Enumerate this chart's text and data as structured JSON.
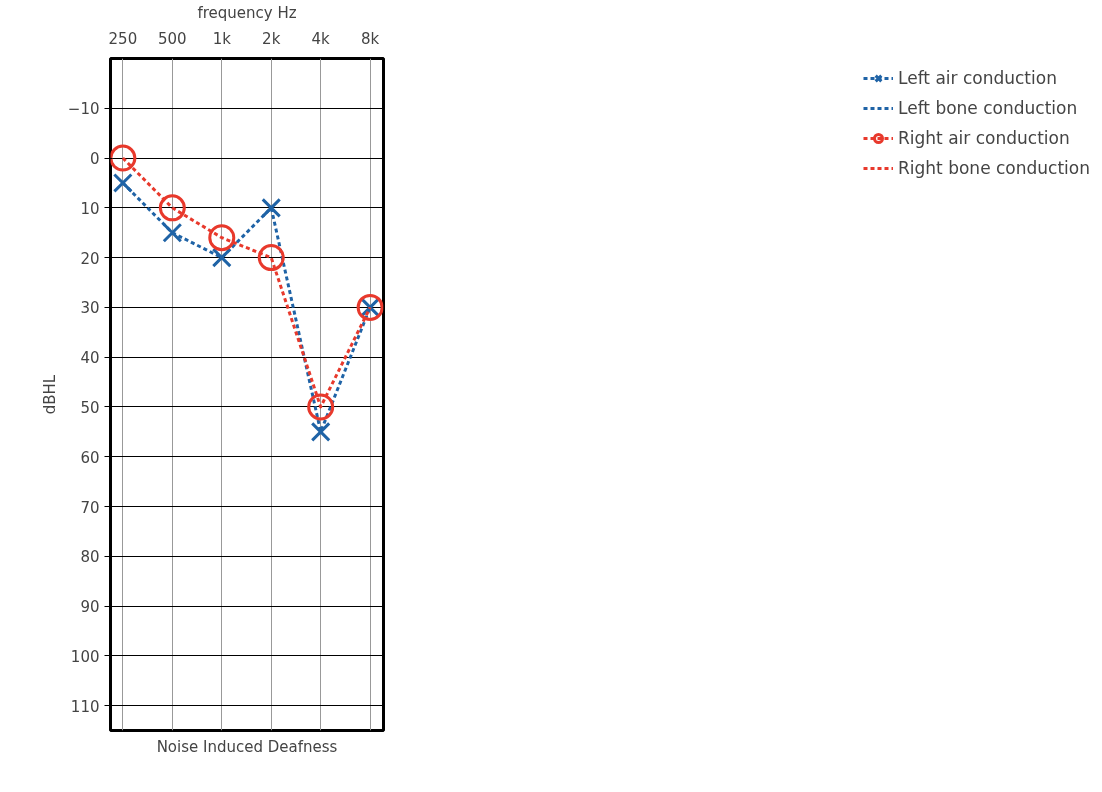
{
  "chart_data": {
    "type": "line",
    "xlabel": "frequency Hz",
    "ylabel": "dBHL",
    "annotations": [
      "Noise Induced Deafness"
    ],
    "categories": [
      "250",
      "500",
      "1k",
      "2k",
      "4k",
      "8k"
    ],
    "ylim": [
      115,
      -20
    ],
    "yticks": [
      -10,
      0,
      10,
      20,
      30,
      40,
      50,
      60,
      70,
      80,
      90,
      100,
      110
    ],
    "grid": true,
    "legend": "right",
    "line_style": "dashed",
    "series": [
      {
        "name": "Left air conduction",
        "color": "#1f63a6",
        "marker": "cross",
        "values": [
          5,
          15,
          20,
          10,
          55,
          30
        ]
      },
      {
        "name": "Left bone conduction",
        "color": "#1f63a6",
        "marker": "none",
        "values": [
          null,
          null,
          null,
          null,
          null,
          null
        ]
      },
      {
        "name": "Right air conduction",
        "color": "#e8392c",
        "marker": "circle",
        "values": [
          0,
          10,
          16,
          20,
          50,
          30
        ]
      },
      {
        "name": "Right bone conduction",
        "color": "#e8392c",
        "marker": "none",
        "values": [
          null,
          null,
          null,
          null,
          null,
          null
        ]
      }
    ]
  }
}
